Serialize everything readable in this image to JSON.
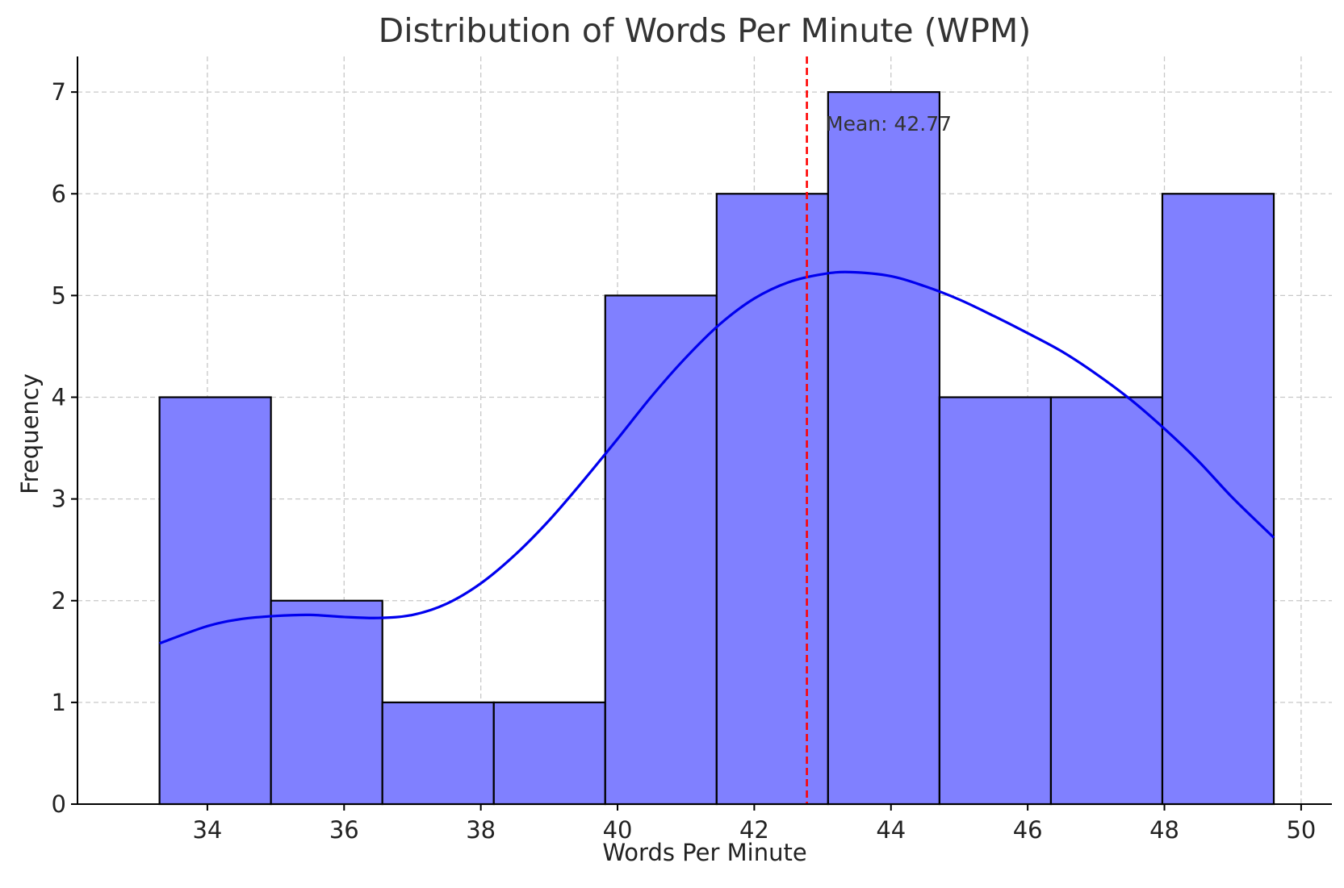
{
  "chart_data": {
    "type": "bar",
    "title": "Distribution of Words Per Minute (WPM)",
    "xlabel": "Words Per Minute",
    "ylabel": "Frequency",
    "xlim": [
      32.1,
      50.45
    ],
    "ylim": [
      0,
      7.35
    ],
    "xticks": [
      34,
      36,
      38,
      40,
      42,
      44,
      46,
      48,
      50
    ],
    "yticks": [
      0,
      1,
      2,
      3,
      4,
      5,
      6,
      7
    ],
    "grid": true,
    "bins": [
      {
        "x0": 33.3,
        "x1": 34.93,
        "count": 4
      },
      {
        "x0": 34.93,
        "x1": 36.56,
        "count": 2
      },
      {
        "x0": 36.56,
        "x1": 38.19,
        "count": 1
      },
      {
        "x0": 38.19,
        "x1": 39.82,
        "count": 1
      },
      {
        "x0": 39.82,
        "x1": 41.45,
        "count": 5
      },
      {
        "x0": 41.45,
        "x1": 43.08,
        "count": 6
      },
      {
        "x0": 43.08,
        "x1": 44.71,
        "count": 7
      },
      {
        "x0": 44.71,
        "x1": 46.34,
        "count": 4
      },
      {
        "x0": 46.34,
        "x1": 47.97,
        "count": 4
      },
      {
        "x0": 47.97,
        "x1": 49.6,
        "count": 6
      }
    ],
    "kde": {
      "x": [
        33.3,
        34.0,
        34.5,
        35.0,
        35.5,
        36.0,
        36.5,
        37.0,
        37.5,
        38.0,
        38.5,
        39.0,
        39.5,
        40.0,
        40.5,
        41.0,
        41.5,
        42.0,
        42.5,
        43.0,
        43.4,
        44.0,
        44.5,
        45.0,
        45.5,
        46.0,
        46.5,
        47.0,
        47.5,
        48.0,
        48.5,
        49.0,
        49.6
      ],
      "y": [
        1.58,
        1.75,
        1.82,
        1.85,
        1.86,
        1.84,
        1.83,
        1.86,
        1.97,
        2.17,
        2.45,
        2.79,
        3.18,
        3.59,
        4.01,
        4.39,
        4.72,
        4.97,
        5.13,
        5.21,
        5.23,
        5.19,
        5.09,
        4.96,
        4.8,
        4.63,
        4.45,
        4.23,
        3.98,
        3.69,
        3.37,
        3.01,
        2.62
      ]
    },
    "mean": 42.77,
    "mean_label": "Mean: 42.77",
    "colors": {
      "bar_fill": "#8080ff",
      "bar_edge": "#000000",
      "kde_line": "#0000ee",
      "mean_line": "#ff0000"
    }
  }
}
